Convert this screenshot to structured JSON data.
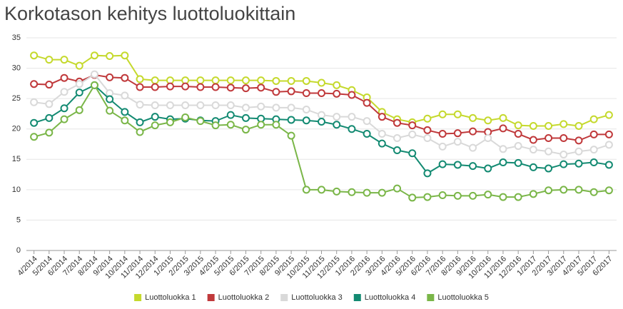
{
  "chart_data": {
    "type": "line",
    "title": "Korkotason kehitys luottoluokittain",
    "categories": [
      "4/2014",
      "5/2014",
      "6/2014",
      "7/2014",
      "8/2014",
      "9/2014",
      "10/2014",
      "11/2014",
      "12/2014",
      "1/2015",
      "2/2015",
      "3/2015",
      "4/2015",
      "5/2015",
      "6/2015",
      "7/2015",
      "8/2015",
      "9/2015",
      "10/2015",
      "11/2015",
      "12/2015",
      "1/2016",
      "2/2016",
      "3/2016",
      "4/2016",
      "5/2016",
      "6/2016",
      "7/2016",
      "8/2016",
      "9/2016",
      "10/2016",
      "11/2016",
      "12/2016",
      "1/2017",
      "2/2017",
      "3/2017",
      "4/2017",
      "5/2017",
      "6/2017"
    ],
    "series": [
      {
        "name": "Luottoluokka 1",
        "color": "#c5d92d",
        "values": [
          32.1,
          31.4,
          31.4,
          30.4,
          32.1,
          32.0,
          32.1,
          28.2,
          28.0,
          28.0,
          28.0,
          28.0,
          28.0,
          28.0,
          28.0,
          28.0,
          27.9,
          27.9,
          27.9,
          27.6,
          27.2,
          26.4,
          25.2,
          22.8,
          21.6,
          21.1,
          21.7,
          22.4,
          22.4,
          21.8,
          21.4,
          21.8,
          20.6,
          20.5,
          20.5,
          20.8,
          20.5,
          21.6,
          22.3
        ]
      },
      {
        "name": "Luottoluokka 2",
        "color": "#c0393b",
        "values": [
          27.4,
          27.3,
          28.4,
          27.8,
          28.9,
          28.5,
          28.4,
          26.9,
          26.9,
          27.0,
          27.0,
          26.9,
          26.9,
          26.8,
          26.7,
          26.8,
          26.1,
          26.2,
          25.9,
          25.9,
          25.8,
          25.6,
          24.3,
          22.0,
          21.0,
          20.6,
          19.8,
          19.2,
          19.3,
          19.6,
          19.5,
          20.1,
          19.2,
          18.2,
          18.5,
          18.5,
          18.1,
          19.1,
          19.1
        ]
      },
      {
        "name": "Luottoluokka 3",
        "color": "#d9d9d9",
        "values": [
          24.4,
          24.1,
          26.1,
          27.4,
          29.0,
          25.9,
          25.5,
          24.0,
          23.9,
          23.9,
          23.9,
          23.9,
          23.9,
          23.9,
          23.5,
          23.7,
          23.5,
          23.5,
          23.2,
          22.3,
          22.0,
          22.0,
          21.3,
          19.2,
          18.5,
          19.1,
          18.5,
          17.1,
          17.9,
          16.9,
          18.5,
          16.7,
          17.2,
          16.6,
          16.3,
          15.8,
          16.3,
          16.6,
          17.4
        ]
      },
      {
        "name": "Luottoluokka 4",
        "color": "#138a72",
        "values": [
          21.0,
          21.8,
          23.4,
          26.0,
          27.2,
          24.9,
          22.8,
          21.1,
          22.0,
          21.6,
          21.7,
          21.4,
          21.3,
          22.3,
          21.8,
          21.7,
          21.6,
          21.5,
          21.4,
          21.2,
          20.7,
          20.0,
          19.2,
          17.6,
          16.5,
          16.0,
          12.7,
          14.2,
          14.1,
          13.9,
          13.5,
          14.5,
          14.4,
          13.7,
          13.5,
          14.2,
          14.3,
          14.5,
          14.1
        ]
      },
      {
        "name": "Luottoluokka 5",
        "color": "#7ab648",
        "values": [
          18.7,
          19.4,
          21.6,
          23.1,
          27.2,
          23.0,
          21.4,
          19.5,
          20.6,
          21.1,
          21.9,
          21.3,
          20.6,
          20.7,
          19.9,
          20.7,
          20.7,
          18.9,
          10.0,
          10.0,
          9.7,
          9.6,
          9.5,
          9.5,
          10.2,
          8.7,
          8.8,
          9.1,
          9.0,
          9.0,
          9.2,
          8.8,
          8.8,
          9.3,
          9.9,
          10.0,
          10.0,
          9.6,
          9.9
        ]
      }
    ],
    "ylim": [
      0,
      35
    ],
    "yticks": [
      0,
      5,
      10,
      15,
      20,
      25,
      30,
      35
    ],
    "grid": true,
    "legend": "bottom"
  }
}
